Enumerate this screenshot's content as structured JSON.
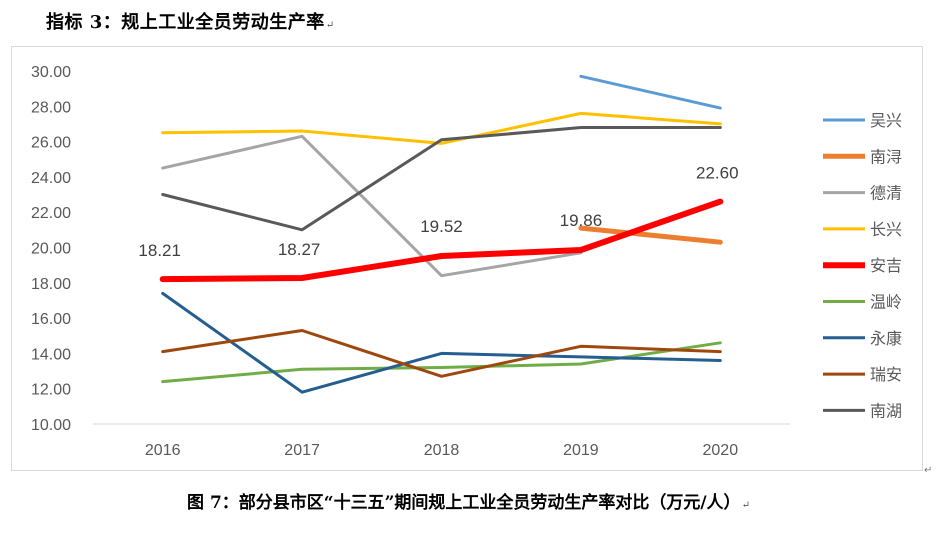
{
  "heading": {
    "text": "指标 3：规上工业全员劳动生产率",
    "mark": "↵"
  },
  "caption": {
    "text": "图 7：部分县市区“十三五”期间规上工业全员劳动生产率对比（万元/人）",
    "mark": "↵"
  },
  "corner_mark": "↵",
  "chart_data": {
    "type": "line",
    "title": "",
    "xlabel": "",
    "ylabel": "",
    "categories": [
      "2016",
      "2017",
      "2018",
      "2019",
      "2020"
    ],
    "ylim": [
      10,
      30
    ],
    "yticks": [
      "10.00",
      "12.00",
      "14.00",
      "16.00",
      "18.00",
      "20.00",
      "22.00",
      "24.00",
      "26.00",
      "28.00",
      "30.00"
    ],
    "grid": false,
    "legend": "right",
    "series": [
      {
        "name": "吴兴",
        "color": "#5b9bd5",
        "width": 3,
        "values": [
          null,
          null,
          null,
          29.7,
          27.9
        ]
      },
      {
        "name": "南浔",
        "color": "#ed7d31",
        "width": 5,
        "values": [
          null,
          null,
          null,
          21.1,
          20.3
        ]
      },
      {
        "name": "德清",
        "color": "#a5a5a5",
        "width": 3,
        "values": [
          24.5,
          26.3,
          18.4,
          19.7,
          null
        ]
      },
      {
        "name": "长兴",
        "color": "#ffc000",
        "width": 3,
        "values": [
          26.5,
          26.6,
          25.9,
          27.6,
          27.0
        ]
      },
      {
        "name": "安吉",
        "color": "#ff0000",
        "width": 6,
        "values": [
          18.21,
          18.27,
          19.52,
          19.86,
          22.6
        ]
      },
      {
        "name": "温岭",
        "color": "#70ad47",
        "width": 3,
        "values": [
          12.4,
          13.1,
          13.2,
          13.4,
          14.6
        ]
      },
      {
        "name": "永康",
        "color": "#255e91",
        "width": 3,
        "values": [
          17.4,
          11.8,
          14.0,
          13.8,
          13.6
        ]
      },
      {
        "name": "瑞安",
        "color": "#9e480e",
        "width": 3,
        "values": [
          14.1,
          15.3,
          12.7,
          14.4,
          14.1
        ]
      },
      {
        "name": "南湖",
        "color": "#595959",
        "width": 3,
        "values": [
          23.0,
          21.0,
          26.1,
          26.8,
          26.8
        ]
      }
    ],
    "data_labels": [
      {
        "series": "安吉",
        "index": 0,
        "text": "18.21"
      },
      {
        "series": "安吉",
        "index": 1,
        "text": "18.27"
      },
      {
        "series": "安吉",
        "index": 2,
        "text": "19.52"
      },
      {
        "series": "安吉",
        "index": 3,
        "text": "19.86"
      },
      {
        "series": "安吉",
        "index": 4,
        "text": "22.60"
      }
    ]
  }
}
